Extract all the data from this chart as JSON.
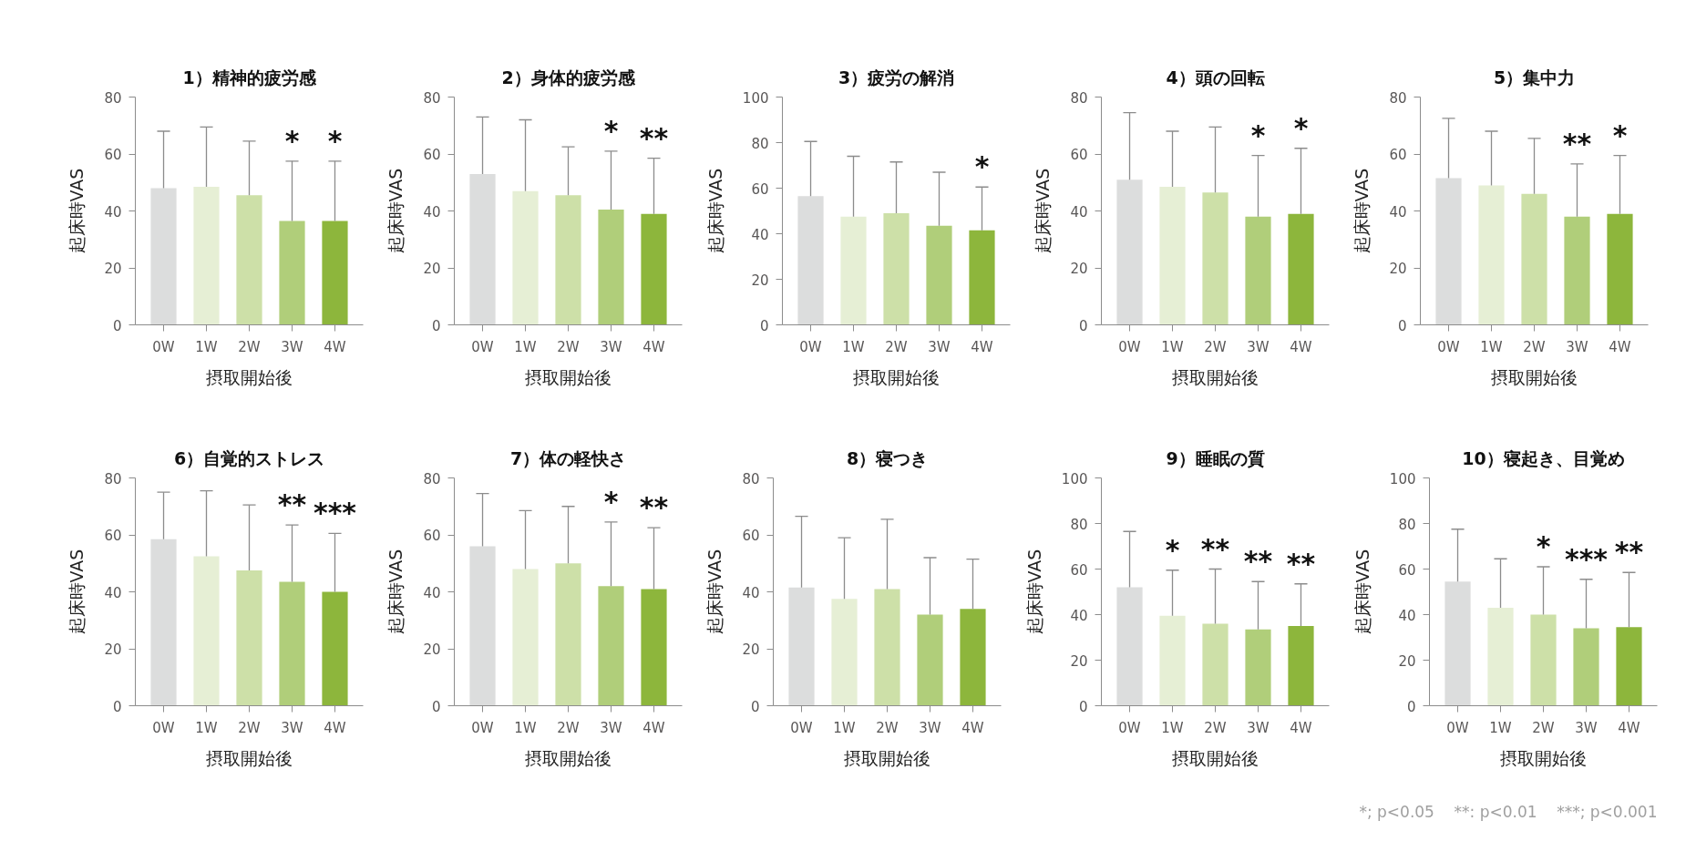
{
  "chart_data": [
    {
      "type": "bar",
      "title": "1）精神的疲労感",
      "xlabel": "摂取開始後",
      "ylabel": "起床時VAS",
      "categories": [
        "0W",
        "1W",
        "2W",
        "3W",
        "4W"
      ],
      "values": [
        48,
        48.5,
        45.5,
        36.5,
        36.5
      ],
      "colors": [
        "#dcdddd",
        "#e6efd5",
        "#cde0a8",
        "#b0ce7a",
        "#8db63c"
      ],
      "errors": [
        [
          48,
          68
        ],
        [
          48.5,
          69.5
        ],
        [
          45.5,
          64.5
        ],
        [
          36.5,
          57.5
        ],
        [
          36.5,
          57.5
        ]
      ],
      "ylim": [
        0,
        80
      ],
      "yticks": [
        0,
        20,
        40,
        60,
        80
      ],
      "annotations": [
        {
          "text": "*",
          "x": "3W",
          "y": 57.5
        },
        {
          "text": "*",
          "x": "4W",
          "y": 57.5
        }
      ]
    },
    {
      "type": "bar",
      "title": "2）身体的疲労感",
      "xlabel": "摂取開始後",
      "ylabel": "起床時VAS",
      "categories": [
        "0W",
        "1W",
        "2W",
        "3W",
        "4W"
      ],
      "values": [
        53,
        47,
        45.5,
        40.5,
        39
      ],
      "colors": [
        "#dcdddd",
        "#e6efd5",
        "#cde0a8",
        "#b0ce7a",
        "#8db63c"
      ],
      "errors": [
        [
          53,
          73
        ],
        [
          47,
          72
        ],
        [
          45.5,
          62.5
        ],
        [
          40.5,
          61
        ],
        [
          39,
          58.5
        ]
      ],
      "ylim": [
        0,
        80
      ],
      "yticks": [
        0,
        20,
        40,
        60,
        80
      ],
      "annotations": [
        {
          "text": "*",
          "x": "3W",
          "y": 61
        },
        {
          "text": "**",
          "x": "4W",
          "y": 58.5
        }
      ]
    },
    {
      "type": "bar",
      "title": "3）疲労の解消",
      "xlabel": "摂取開始後",
      "ylabel": "起床時VAS",
      "categories": [
        "0W",
        "1W",
        "2W",
        "3W",
        "4W"
      ],
      "values": [
        56.5,
        47.5,
        49,
        43.5,
        41.5
      ],
      "colors": [
        "#dcdddd",
        "#e6efd5",
        "#cde0a8",
        "#b0ce7a",
        "#8db63c"
      ],
      "errors": [
        [
          56.5,
          80.5
        ],
        [
          47.5,
          74
        ],
        [
          49,
          71.5
        ],
        [
          43.5,
          67
        ],
        [
          41.5,
          60.5
        ]
      ],
      "ylim": [
        0,
        100
      ],
      "yticks": [
        0,
        20,
        40,
        60,
        80,
        100
      ],
      "annotations": [
        {
          "text": "*",
          "x": "4W",
          "y": 60.5
        }
      ]
    },
    {
      "type": "bar",
      "title": "4）頭の回転",
      "xlabel": "摂取開始後",
      "ylabel": "起床時VAS",
      "categories": [
        "0W",
        "1W",
        "2W",
        "3W",
        "4W"
      ],
      "values": [
        51,
        48.5,
        46.5,
        38,
        39
      ],
      "colors": [
        "#dcdddd",
        "#e6efd5",
        "#cde0a8",
        "#b0ce7a",
        "#8db63c"
      ],
      "errors": [
        [
          51,
          74.5
        ],
        [
          48.5,
          68
        ],
        [
          46.5,
          69.5
        ],
        [
          38,
          59.5
        ],
        [
          39,
          62
        ]
      ],
      "ylim": [
        0,
        80
      ],
      "yticks": [
        0,
        20,
        40,
        60,
        80
      ],
      "annotations": [
        {
          "text": "*",
          "x": "3W",
          "y": 59.5
        },
        {
          "text": "*",
          "x": "4W",
          "y": 62
        }
      ]
    },
    {
      "type": "bar",
      "title": "5）集中力",
      "xlabel": "摂取開始後",
      "ylabel": "起床時VAS",
      "categories": [
        "0W",
        "1W",
        "2W",
        "3W",
        "4W"
      ],
      "values": [
        51.5,
        49,
        46,
        38,
        39
      ],
      "colors": [
        "#dcdddd",
        "#e6efd5",
        "#cde0a8",
        "#b0ce7a",
        "#8db63c"
      ],
      "errors": [
        [
          51.5,
          72.5
        ],
        [
          49,
          68
        ],
        [
          46,
          65.5
        ],
        [
          38,
          56.5
        ],
        [
          39,
          59.5
        ]
      ],
      "ylim": [
        0,
        80
      ],
      "yticks": [
        0,
        20,
        40,
        60,
        80
      ],
      "annotations": [
        {
          "text": "**",
          "x": "3W",
          "y": 56.5
        },
        {
          "text": "*",
          "x": "4W",
          "y": 59.5
        }
      ]
    },
    {
      "type": "bar",
      "title": "6）自覚的ストレス",
      "xlabel": "摂取開始後",
      "ylabel": "起床時VAS",
      "categories": [
        "0W",
        "1W",
        "2W",
        "3W",
        "4W"
      ],
      "values": [
        58.5,
        52.5,
        47.5,
        43.5,
        40
      ],
      "colors": [
        "#dcdddd",
        "#e6efd5",
        "#cde0a8",
        "#b0ce7a",
        "#8db63c"
      ],
      "errors": [
        [
          58.5,
          75
        ],
        [
          52.5,
          75.5
        ],
        [
          47.5,
          70.5
        ],
        [
          43.5,
          63.5
        ],
        [
          40,
          60.5
        ]
      ],
      "ylim": [
        0,
        80
      ],
      "yticks": [
        0,
        20,
        40,
        60,
        80
      ],
      "annotations": [
        {
          "text": "**",
          "x": "3W",
          "y": 63.5
        },
        {
          "text": "***",
          "x": "4W",
          "y": 60.5
        }
      ]
    },
    {
      "type": "bar",
      "title": "7）体の軽快さ",
      "xlabel": "摂取開始後",
      "ylabel": "起床時VAS",
      "categories": [
        "0W",
        "1W",
        "2W",
        "3W",
        "4W"
      ],
      "values": [
        56,
        48,
        50,
        42,
        41
      ],
      "colors": [
        "#dcdddd",
        "#e6efd5",
        "#cde0a8",
        "#b0ce7a",
        "#8db63c"
      ],
      "errors": [
        [
          56,
          74.5
        ],
        [
          48,
          68.5
        ],
        [
          50,
          70
        ],
        [
          42,
          64.5
        ],
        [
          41,
          62.5
        ]
      ],
      "ylim": [
        0,
        80
      ],
      "yticks": [
        0,
        20,
        40,
        60,
        80
      ],
      "annotations": [
        {
          "text": "*",
          "x": "3W",
          "y": 64.5
        },
        {
          "text": "**",
          "x": "4W",
          "y": 62.5
        }
      ]
    },
    {
      "type": "bar",
      "title": "8）寝つき",
      "xlabel": "摂取開始後",
      "ylabel": "起床時VAS",
      "categories": [
        "0W",
        "1W",
        "2W",
        "3W",
        "4W"
      ],
      "values": [
        41.5,
        37.5,
        41,
        32,
        34
      ],
      "colors": [
        "#dcdddd",
        "#e6efd5",
        "#cde0a8",
        "#b0ce7a",
        "#8db63c"
      ],
      "errors": [
        [
          41.5,
          66.5
        ],
        [
          37.5,
          59
        ],
        [
          41,
          65.5
        ],
        [
          32,
          52
        ],
        [
          34,
          51.5
        ]
      ],
      "ylim": [
        0,
        80
      ],
      "yticks": [
        0,
        20,
        40,
        60,
        80
      ]
    },
    {
      "type": "bar",
      "title": "9）睡眠の質",
      "xlabel": "摂取開始後",
      "ylabel": "起床時VAS",
      "categories": [
        "0W",
        "1W",
        "2W",
        "3W",
        "4W"
      ],
      "values": [
        52,
        39.5,
        36,
        33.5,
        35
      ],
      "colors": [
        "#dcdddd",
        "#e6efd5",
        "#cde0a8",
        "#b0ce7a",
        "#8db63c"
      ],
      "errors": [
        [
          52,
          76.5
        ],
        [
          39.5,
          59.5
        ],
        [
          36,
          60
        ],
        [
          33.5,
          54.5
        ],
        [
          35,
          53.5
        ]
      ],
      "ylim": [
        0,
        100
      ],
      "yticks": [
        0,
        20,
        40,
        60,
        80,
        100
      ],
      "annotations": [
        {
          "text": "*",
          "x": "1W",
          "y": 59.5
        },
        {
          "text": "**",
          "x": "2W",
          "y": 60
        },
        {
          "text": "**",
          "x": "3W",
          "y": 54.5
        },
        {
          "text": "**",
          "x": "4W",
          "y": 53.5
        }
      ]
    },
    {
      "type": "bar",
      "title": "10）寝起き、目覚め",
      "xlabel": "摂取開始後",
      "ylabel": "起床時VAS",
      "categories": [
        "0W",
        "1W",
        "2W",
        "3W",
        "4W"
      ],
      "values": [
        54.5,
        43,
        40,
        34,
        34.5
      ],
      "colors": [
        "#dcdddd",
        "#e6efd5",
        "#cde0a8",
        "#b0ce7a",
        "#8db63c"
      ],
      "errors": [
        [
          54.5,
          77.5
        ],
        [
          43,
          64.5
        ],
        [
          40,
          61
        ],
        [
          34,
          55.5
        ],
        [
          34.5,
          58.5
        ]
      ],
      "ylim": [
        0,
        100
      ],
      "yticks": [
        0,
        20,
        40,
        60,
        80,
        100
      ],
      "annotations": [
        {
          "text": "*",
          "x": "2W",
          "y": 61
        },
        {
          "text": "***",
          "x": "3W",
          "y": 55.5
        },
        {
          "text": "**",
          "x": "4W",
          "y": 58.5
        },
        "*; p<0.05",
        "**: p<0.01",
        "***; p<0.001"
      ]
    }
  ]
}
